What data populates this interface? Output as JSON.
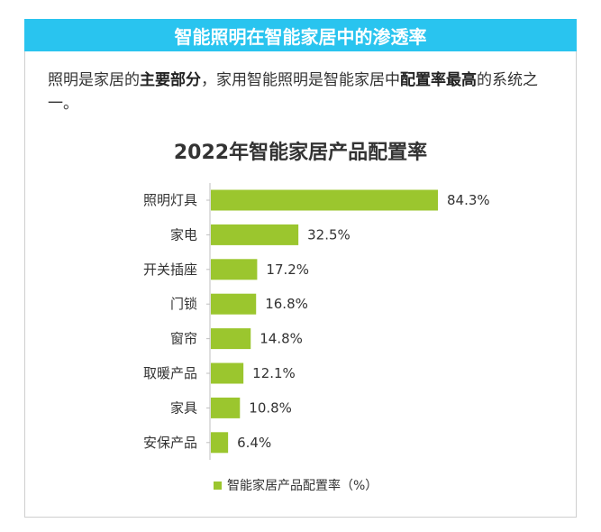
{
  "header": {
    "title": "智能照明在智能家居中的渗透率"
  },
  "intro": {
    "part1": "照明是家居的",
    "bold1": "主要部分",
    "part2": "，家用智能照明是智能家居中",
    "bold2": "配置率最高",
    "part3": "的系统之一。"
  },
  "colors": {
    "header_bg": "#29C4EF",
    "bar": "#9BC62E"
  },
  "chart_data": {
    "type": "bar",
    "orientation": "horizontal",
    "title": "2022年智能家居产品配置率",
    "categories": [
      "照明灯具",
      "家电",
      "开关插座",
      "门锁",
      "窗帘",
      "取暖产品",
      "家具",
      "安保产品"
    ],
    "values": [
      84.3,
      32.5,
      17.2,
      16.8,
      14.8,
      12.1,
      10.8,
      6.4
    ],
    "value_labels": [
      "84.3%",
      "32.5%",
      "17.2%",
      "16.8%",
      "14.8%",
      "12.1%",
      "10.8%",
      "6.4%"
    ],
    "series": [
      {
        "name": "智能家居产品配置率（%）",
        "values": [
          84.3,
          32.5,
          17.2,
          16.8,
          14.8,
          12.1,
          10.8,
          6.4
        ]
      }
    ],
    "xlim": [
      0,
      84.3
    ],
    "legend_position": "bottom",
    "grid": false
  }
}
